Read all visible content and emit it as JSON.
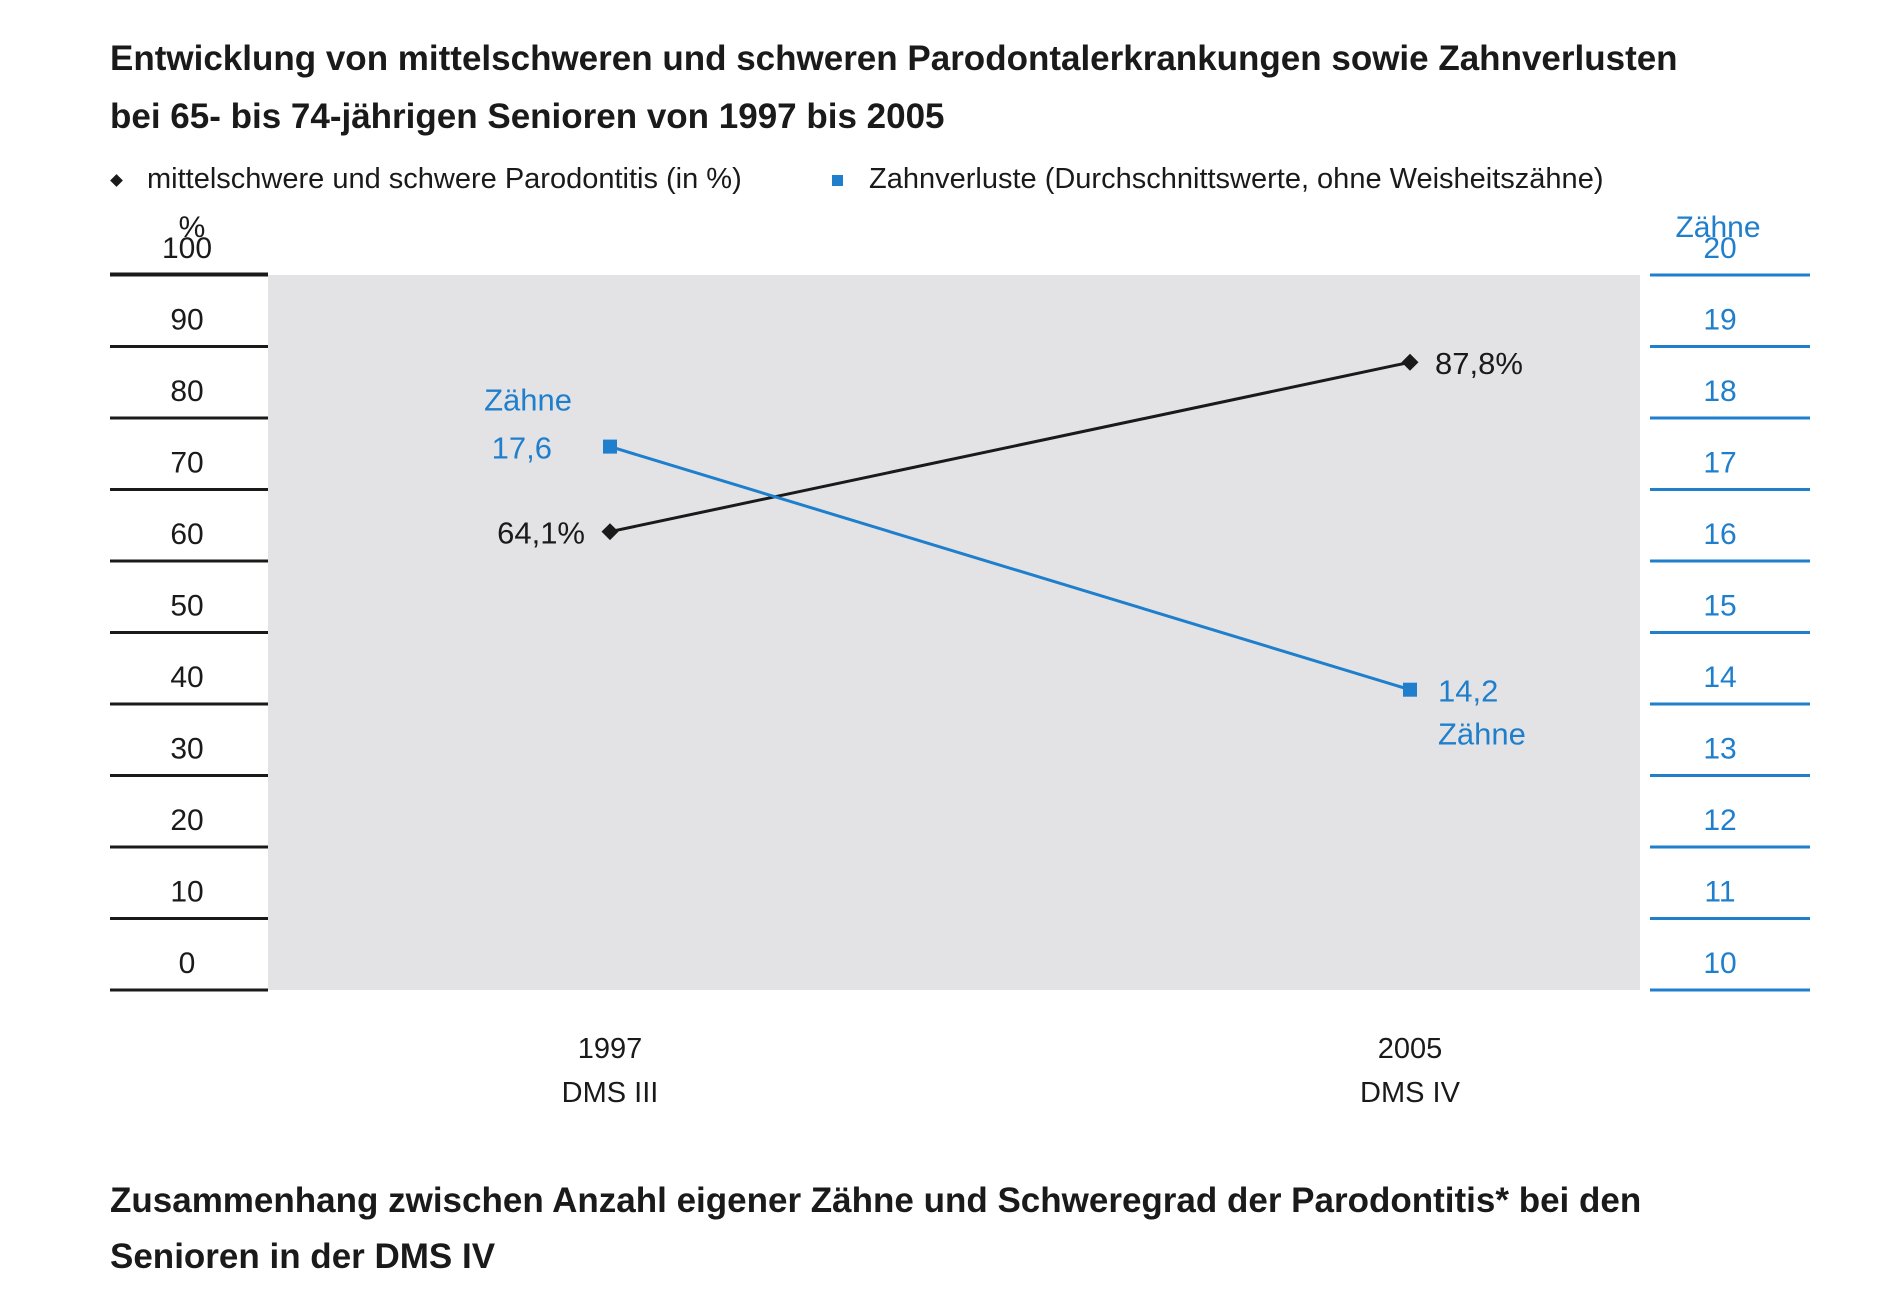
{
  "title_line1": "Entwicklung von mittelschweren und schweren Parodontalerkrankungen sowie Zahnverlusten",
  "title_line2": "bei 65- bis 74-jährigen Senioren von 1997 bis 2005",
  "legend": {
    "series1": "mittelschwere und schwere Parodontitis (in %)",
    "series2": "Zahnverluste (Durchschnittswerte, ohne Weisheitszähne)"
  },
  "bottom_title_line1": "Zusammenhang zwischen Anzahl eigener Zähne und Schweregrad der Parodontitis* bei den",
  "bottom_title_line2": "Senioren in der DMS IV",
  "colors": {
    "series1": "#1a1a1a",
    "series2": "#1f7fcc",
    "plot_bg": "#e3e3e5",
    "right_axis": "#1f7fcc"
  },
  "chart_data": {
    "type": "line",
    "categories": [
      {
        "year": "1997",
        "survey": "DMS III"
      },
      {
        "year": "2005",
        "survey": "DMS IV"
      }
    ],
    "y_left": {
      "label": "%",
      "min": 0,
      "max": 100,
      "ticks": [
        "100",
        "90",
        "80",
        "70",
        "60",
        "50",
        "40",
        "30",
        "20",
        "10",
        "0"
      ]
    },
    "y_right": {
      "label": "Zähne",
      "min": 10,
      "max": 20,
      "ticks": [
        "20",
        "19",
        "18",
        "17",
        "16",
        "15",
        "14",
        "13",
        "12",
        "11",
        "10"
      ]
    },
    "series": [
      {
        "name": "mittelschwere und schwere Parodontitis (in %)",
        "axis": "left",
        "marker": "diamond",
        "values": [
          64.1,
          87.8
        ],
        "labels": [
          "64,1%",
          "87,8%"
        ]
      },
      {
        "name": "Zahnverluste (Durchschnittswerte, ohne Weisheitszähne)",
        "axis": "right",
        "marker": "square",
        "values": [
          17.6,
          14.2
        ],
        "labels": [
          [
            "Zähne",
            "17,6"
          ],
          [
            "14,2",
            "Zähne"
          ]
        ]
      }
    ],
    "legend_position": "top",
    "grid": true
  }
}
